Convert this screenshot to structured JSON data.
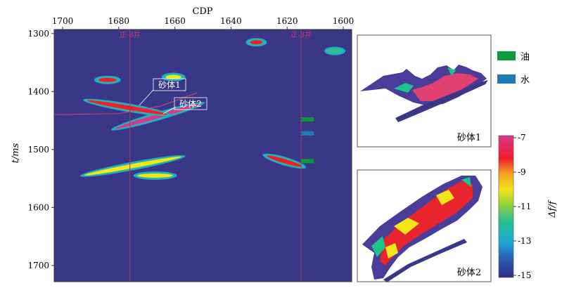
{
  "chart_data": [
    {
      "type": "heatmap",
      "title": "",
      "xlabel": "CDP",
      "ylabel": "t/ms",
      "xlim": [
        1703,
        1597
      ],
      "ylim": [
        1293,
        1728
      ],
      "x_ticks": [
        1700,
        1680,
        1660,
        1640,
        1620,
        1600
      ],
      "y_ticks": [
        1300,
        1400,
        1500,
        1600,
        1700
      ],
      "wells": [
        {
          "name": "正-8井",
          "cdp": 1676
        },
        {
          "name": "正-3井",
          "cdp": 1615
        }
      ],
      "annotations": [
        {
          "text": "砂体1",
          "cdp": 1672,
          "t": 1418
        },
        {
          "text": "砂体2",
          "cdp": 1665,
          "t": 1432
        }
      ],
      "well_markers": [
        {
          "type": "oil",
          "t": 1448
        },
        {
          "type": "water",
          "t": 1472
        },
        {
          "type": "oil",
          "t": 1520
        }
      ],
      "bodies": [
        {
          "cdp": [
            1682,
            1650
          ],
          "t": [
            1465,
            1420
          ],
          "level": -7
        },
        {
          "cdp": [
            1692,
            1662
          ],
          "t": [
            1415,
            1440
          ],
          "level": -8
        },
        {
          "cdp": [
            1628,
            1614
          ],
          "t": [
            1510,
            1530
          ],
          "level": -8
        },
        {
          "cdp": [
            1693,
            1657
          ],
          "t": [
            1545,
            1512
          ],
          "level": -10
        },
        {
          "cdp": [
            1674,
            1660
          ],
          "t": [
            1545,
            1545
          ],
          "level": -11
        },
        {
          "cdp": [
            1688,
            1680
          ],
          "t": [
            1380,
            1380
          ],
          "level": -9
        },
        {
          "cdp": [
            1664,
            1657
          ],
          "t": [
            1375,
            1375
          ],
          "level": -10
        },
        {
          "cdp": [
            1634,
            1628
          ],
          "t": [
            1315,
            1315
          ],
          "level": -9
        },
        {
          "cdp": [
            1606,
            1600
          ],
          "t": [
            1330,
            1330
          ],
          "level": -12
        }
      ]
    },
    {
      "type": "heatmap",
      "title": "砂体1",
      "description_label": "砂体1"
    },
    {
      "type": "heatmap",
      "title": "砂体2",
      "description_label": "砂体2"
    }
  ],
  "legend": {
    "items": [
      {
        "label": "油",
        "color": "#0a9a3c"
      },
      {
        "label": "水",
        "color": "#1f7ab8"
      }
    ]
  },
  "colorbar": {
    "label": "Δf/f",
    "ticks": [
      "-7",
      "-9",
      "-11",
      "-13",
      "-15"
    ],
    "range": [
      -15,
      -7
    ],
    "colors": [
      "#2b2f83",
      "#1ea8d8",
      "#29c08a",
      "#f2e61a",
      "#ee1e2a",
      "#d8378f"
    ]
  },
  "colors": {
    "background": "#3a3789",
    "well_line": "#a8385e"
  }
}
